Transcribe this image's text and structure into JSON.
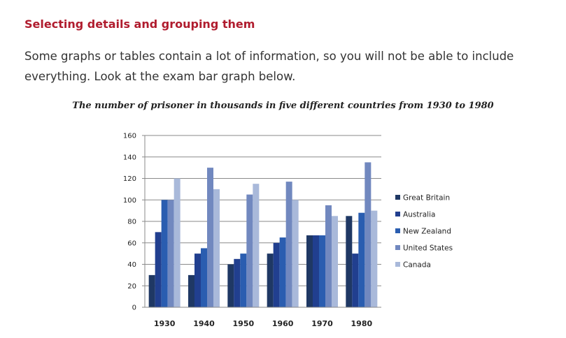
{
  "page": {
    "heading": "Selecting details and grouping them",
    "intro": "Some graphs or tables contain a lot of information, so you will not be able to include everything. Look at the exam bar graph below."
  },
  "chart_data": {
    "type": "bar",
    "title": "The number of prisoner in thousands in five different countries from 1930 to 1980",
    "xlabel": "",
    "ylabel": "",
    "ylim": [
      0,
      160
    ],
    "yticks": [
      0,
      20,
      40,
      60,
      80,
      100,
      120,
      140,
      160
    ],
    "grid": true,
    "legend_position": "right",
    "categories": [
      "1930",
      "1940",
      "1950",
      "1960",
      "1970",
      "1980"
    ],
    "series": [
      {
        "name": "Great Britain",
        "color": "#1f3864",
        "values": [
          30,
          30,
          40,
          50,
          67,
          85
        ]
      },
      {
        "name": "Australia",
        "color": "#213f8f",
        "values": [
          70,
          50,
          45,
          60,
          67,
          50
        ]
      },
      {
        "name": "New Zealand",
        "color": "#2a5db0",
        "values": [
          100,
          55,
          50,
          65,
          67,
          88
        ]
      },
      {
        "name": "United States",
        "color": "#7188bf",
        "values": [
          100,
          130,
          105,
          117,
          95,
          135
        ]
      },
      {
        "name": "Canada",
        "color": "#a9b9da",
        "values": [
          120,
          110,
          115,
          100,
          85,
          90
        ]
      }
    ]
  }
}
